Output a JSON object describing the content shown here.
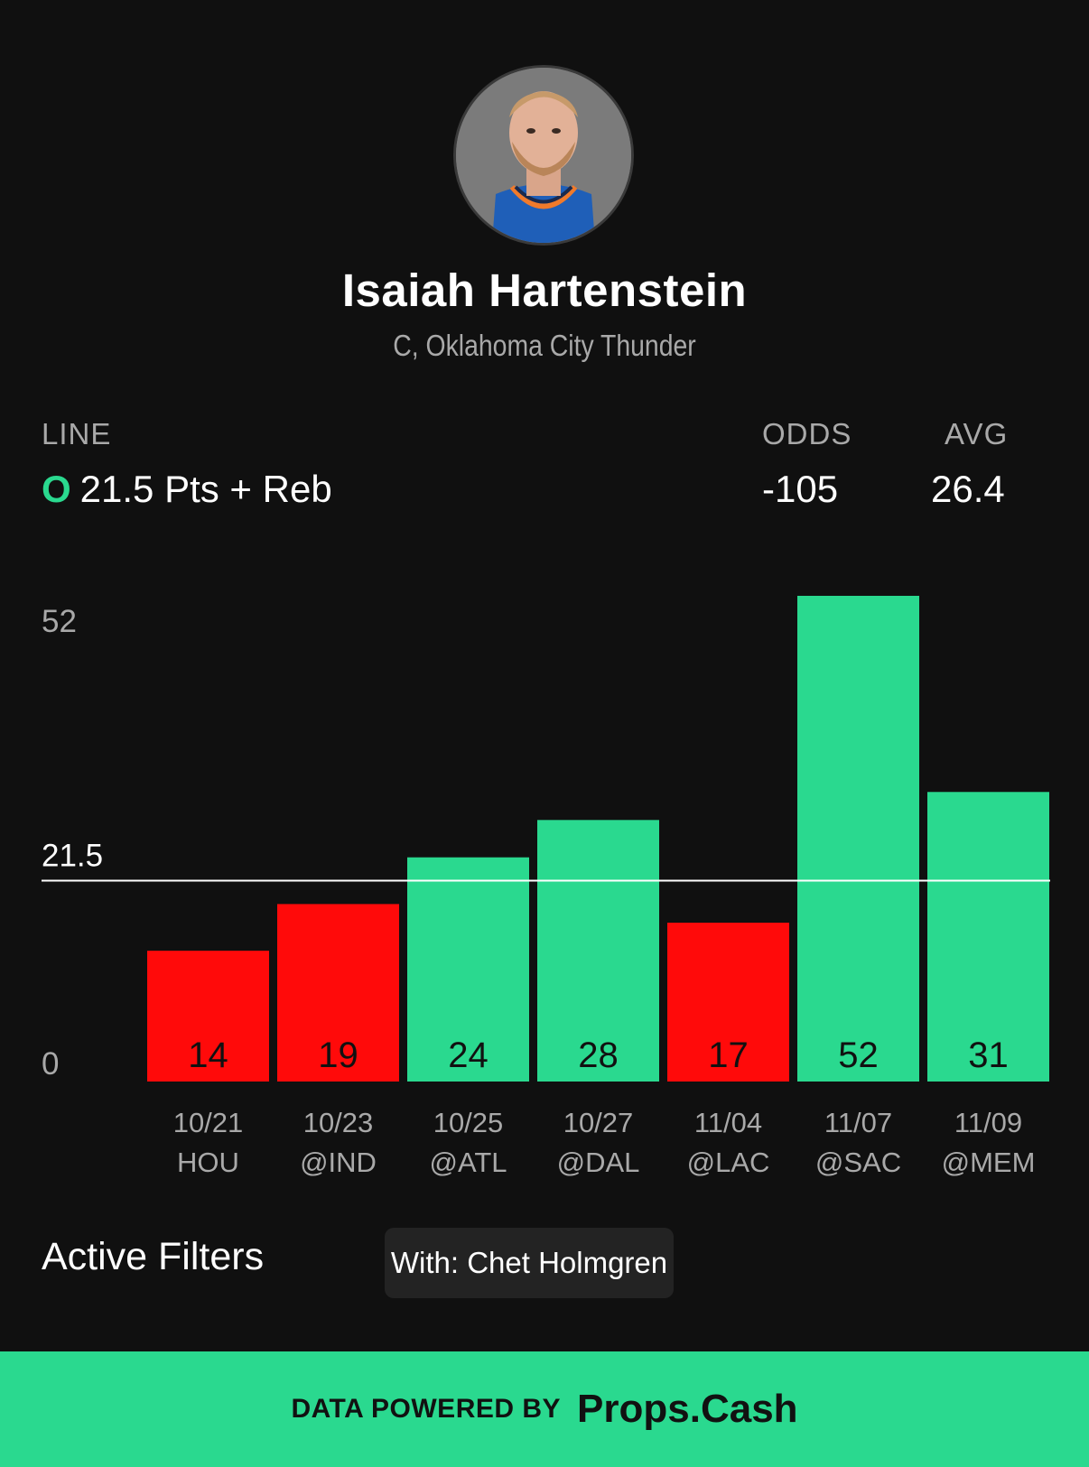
{
  "player": {
    "name": "Isaiah Hartenstein",
    "position_team": "C, Oklahoma City Thunder"
  },
  "line": {
    "label": "LINE",
    "direction": "O",
    "value": "21.5 Pts + Reb",
    "direction_color": "#2ad98f"
  },
  "odds": {
    "label": "ODDS",
    "value": "-105"
  },
  "avg": {
    "label": "AVG",
    "value": "26.4"
  },
  "chart_data": {
    "type": "bar",
    "categories": [
      "10/21 HOU",
      "10/23 @IND",
      "10/25 @ATL",
      "10/27 @DAL",
      "11/04 @LAC",
      "11/07 @SAC",
      "11/09 @MEM"
    ],
    "dates": [
      "10/21",
      "10/23",
      "10/25",
      "10/27",
      "11/04",
      "11/07",
      "11/09"
    ],
    "opponents": [
      "HOU",
      "@IND",
      "@ATL",
      "@DAL",
      "@LAC",
      "@SAC",
      "@MEM"
    ],
    "values": [
      14,
      19,
      24,
      28,
      17,
      52,
      31
    ],
    "line": 21.5,
    "ylim": [
      0,
      52
    ],
    "y_ticks": [
      "0",
      "21.5",
      "52"
    ],
    "y_tick_values": [
      0,
      21.5,
      52
    ],
    "over_color": "#2ad98f",
    "under_color": "#ff0a0a",
    "line_color": "#ffffff",
    "grid": false
  },
  "filters": {
    "label": "Active Filters",
    "items": [
      "With: Chet Holmgren"
    ]
  },
  "footer": {
    "prefix": "DATA POWERED BY",
    "brand": "Props.Cash"
  }
}
